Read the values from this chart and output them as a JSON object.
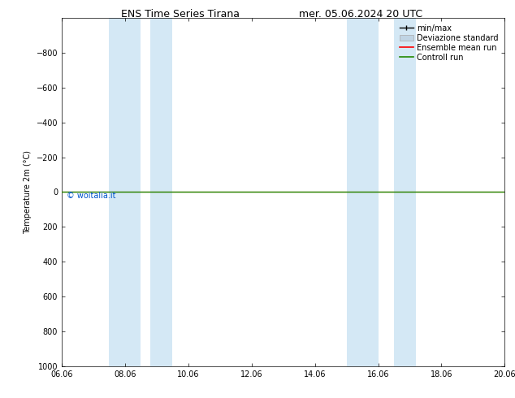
{
  "title_left": "ENS Time Series Tirana",
  "title_right": "mer. 05.06.2024 20 UTC",
  "ylabel": "Temperature 2m (°C)",
  "ylim_bottom": -1000,
  "ylim_top": 1000,
  "yticks": [
    -800,
    -600,
    -400,
    -200,
    0,
    200,
    400,
    600,
    800,
    1000
  ],
  "xtick_labels": [
    "06.06",
    "08.06",
    "10.06",
    "12.06",
    "14.06",
    "16.06",
    "18.06",
    "20.06"
  ],
  "xtick_positions": [
    0,
    2,
    4,
    6,
    8,
    10,
    12,
    14
  ],
  "num_days": 14,
  "shaded_spans": [
    [
      1.5,
      2.5
    ],
    [
      2.8,
      3.5
    ],
    [
      9.0,
      10.0
    ],
    [
      10.5,
      11.2
    ]
  ],
  "shaded_color": "#d4e8f5",
  "control_run_color": "#228800",
  "ensemble_mean_color": "#ff0000",
  "minmax_color": "#000000",
  "std_color": "#c0d4e4",
  "watermark": "© woitalia.it",
  "watermark_color": "#0055cc",
  "background_color": "#ffffff",
  "legend_labels": [
    "min/max",
    "Deviazione standard",
    "Ensemble mean run",
    "Controll run"
  ],
  "legend_line_colors": [
    "#000000",
    "#c0d4e4",
    "#ff0000",
    "#228800"
  ],
  "title_fontsize": 9,
  "tick_fontsize": 7,
  "ylabel_fontsize": 7,
  "legend_fontsize": 7
}
